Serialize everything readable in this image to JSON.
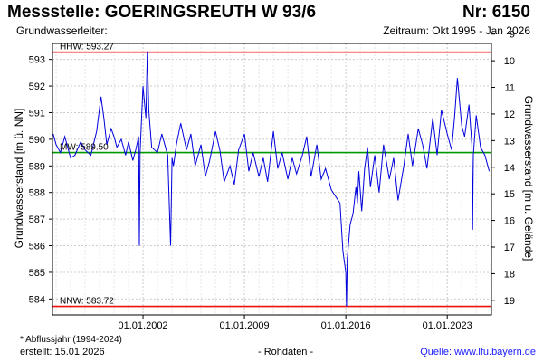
{
  "header": {
    "title": "Messstelle: GOERINGSREUTH W 93/6",
    "number": "Nr: 6150",
    "aquifer": "Grundwasserleiter:",
    "period": "Zeitraum: Okt 1995 - Jan 2026"
  },
  "footer": {
    "footnote": "* Abflussjahr (1994-2024)",
    "created": "erstellt:  15.01.2026",
    "raw_data": "- Rohdaten -",
    "source": "Quelle: www.lfu.bayern.de"
  },
  "colors": {
    "series": "#0000dd",
    "extreme_lines": "#ee1111",
    "mean_line": "#009900",
    "grid": "#cccccc"
  },
  "chart_data": {
    "type": "line",
    "title": "",
    "ylabel_left": "Grundwasserstand [m ü. NN]",
    "ylabel_right": "Grundwasserstand [m u. Gelände]",
    "ylim": [
      583.4,
      593.6
    ],
    "xlim": [
      1995.75,
      2026.05
    ],
    "yticks_left": [
      584,
      585,
      586,
      587,
      588,
      589,
      590,
      591,
      592,
      593
    ],
    "yticks_right": [
      9,
      10,
      11,
      12,
      13,
      14,
      15,
      16,
      17,
      18,
      19
    ],
    "right_axis_offset": 602.95,
    "xticks": [
      {
        "label": "01.01.2002",
        "value": 2002.0
      },
      {
        "label": "01.01.2009",
        "value": 2009.0
      },
      {
        "label": "01.01.2016",
        "value": 2016.0
      },
      {
        "label": "01.01.2023",
        "value": 2023.0
      }
    ],
    "grid": true,
    "reference_lines": [
      {
        "label": "HHW: 593.27",
        "value": 593.27,
        "color": "#ee1111"
      },
      {
        "label": "MW: 589.50",
        "value": 589.5,
        "color": "#009900"
      },
      {
        "label": "NNW: 583.72",
        "value": 583.72,
        "color": "#ee1111"
      }
    ],
    "series": [
      {
        "x": [
          1995.8,
          1996.0,
          1996.3,
          1996.6,
          1997.0,
          1997.3,
          1997.7,
          1998.0,
          1998.4,
          1998.8,
          1999.1,
          1999.3,
          1999.5,
          1999.8,
          2000.0,
          2000.2,
          2000.5,
          2000.8,
          2001.0,
          2001.3,
          2001.5,
          2001.7,
          2001.75,
          2001.8,
          2002.0,
          2002.2,
          2002.3,
          2002.4,
          2002.6,
          2003.0,
          2003.3,
          2003.7,
          2003.9,
          2004.0,
          2004.1,
          2004.3,
          2004.6,
          2005.0,
          2005.3,
          2005.6,
          2006.0,
          2006.3,
          2006.6,
          2007.0,
          2007.3,
          2007.6,
          2008.0,
          2008.3,
          2008.6,
          2009.0,
          2009.3,
          2009.6,
          2010.0,
          2010.3,
          2010.6,
          2011.0,
          2011.3,
          2011.6,
          2012.0,
          2012.3,
          2012.6,
          2013.0,
          2013.3,
          2013.6,
          2014.0,
          2014.3,
          2014.6,
          2015.0,
          2015.6,
          2015.8,
          2016.0,
          2016.05,
          2016.1,
          2016.3,
          2016.5,
          2016.7,
          2016.8,
          2016.9,
          2017.1,
          2017.3,
          2017.5,
          2017.7,
          2018.0,
          2018.3,
          2018.6,
          2019.0,
          2019.3,
          2019.6,
          2020.0,
          2020.3,
          2020.6,
          2021.0,
          2021.3,
          2021.6,
          2022.0,
          2022.3,
          2022.6,
          2023.0,
          2023.3,
          2023.5,
          2023.7,
          2024.0,
          2024.2,
          2024.5,
          2024.7,
          2024.75,
          2024.8,
          2025.0,
          2025.3,
          2025.6,
          2025.9
        ],
        "y": [
          590.2,
          589.8,
          589.5,
          590.1,
          589.3,
          589.4,
          589.9,
          589.6,
          589.4,
          590.3,
          591.6,
          590.8,
          589.8,
          590.4,
          590.1,
          589.7,
          590.0,
          589.4,
          589.9,
          589.2,
          589.6,
          590.1,
          586.0,
          589.5,
          592.0,
          590.8,
          593.3,
          591.1,
          589.7,
          589.5,
          590.2,
          589.4,
          586.0,
          589.3,
          589.0,
          589.8,
          590.6,
          589.6,
          590.2,
          589.0,
          589.8,
          588.6,
          589.2,
          590.3,
          589.6,
          588.4,
          589.0,
          588.3,
          589.6,
          590.2,
          588.8,
          589.5,
          588.6,
          589.3,
          588.4,
          590.3,
          588.9,
          589.5,
          588.5,
          589.3,
          588.7,
          589.4,
          590.1,
          588.6,
          589.8,
          588.5,
          588.9,
          588.1,
          587.6,
          585.8,
          585.0,
          583.72,
          585.5,
          586.8,
          587.2,
          588.2,
          587.6,
          588.8,
          587.3,
          588.9,
          589.7,
          588.2,
          589.4,
          588.0,
          589.8,
          588.5,
          589.3,
          587.7,
          589.0,
          590.2,
          589.0,
          590.4,
          589.8,
          588.9,
          590.8,
          589.4,
          591.1,
          590.2,
          589.6,
          590.8,
          592.3,
          590.5,
          590.1,
          591.3,
          589.8,
          586.6,
          589.4,
          590.9,
          589.7,
          589.4,
          588.8
        ]
      }
    ]
  }
}
